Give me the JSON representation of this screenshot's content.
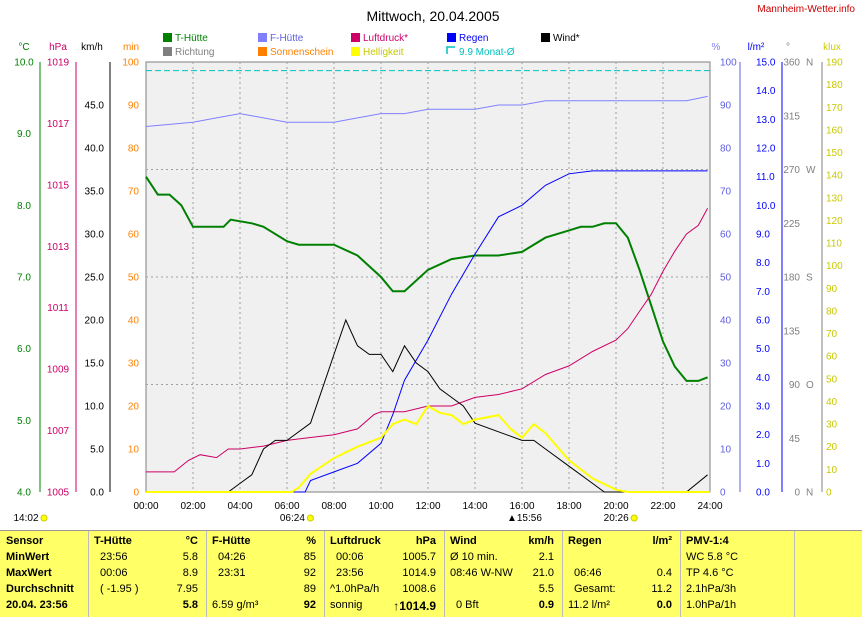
{
  "header": {
    "title": "Mittwoch, 20.04.2005",
    "site": "Mannheim-Wetter.info"
  },
  "units": {
    "temp": "°C",
    "pressure": "hPa",
    "wind": "km/h",
    "sun": "min",
    "humidity": "%",
    "rain": "l/m²",
    "direction": "°",
    "light": "klux"
  },
  "legend": [
    {
      "label": "T-Hütte",
      "color": "#008000",
      "type": "box"
    },
    {
      "label": "F-Hütte",
      "color": "#8080ff",
      "type": "box"
    },
    {
      "label": "Luftdruck*",
      "color": "#cc0066",
      "type": "box"
    },
    {
      "label": "Regen",
      "color": "#0000ff",
      "type": "box"
    },
    {
      "label": "Wind*",
      "color": "#000000",
      "type": "box"
    },
    {
      "label": "Richtung",
      "color": "#808080",
      "type": "box"
    },
    {
      "label": "Sonnenschein",
      "color": "#ff8000",
      "type": "box"
    },
    {
      "label": "Helligkeit",
      "color": "#ffff00",
      "type": "box"
    },
    {
      "label": "9.9 Monat-Ø",
      "color": "#00c0c0",
      "type": "outline"
    }
  ],
  "axes": {
    "temp": [
      "4.0",
      "5.0",
      "6.0",
      "7.0",
      "8.0",
      "9.0",
      "10.0"
    ],
    "pressure": [
      "1005",
      "1007",
      "1009",
      "1011",
      "1013",
      "1015",
      "1017",
      "1019"
    ],
    "wind": [
      "0.0",
      "5.0",
      "10.0",
      "15.0",
      "20.0",
      "25.0",
      "30.0",
      "35.0",
      "40.0",
      "45.0"
    ],
    "sun": [
      "0",
      "10",
      "20",
      "30",
      "40",
      "50",
      "60",
      "70",
      "80",
      "90",
      "100"
    ],
    "humidity": [
      "0",
      "10",
      "20",
      "30",
      "40",
      "50",
      "60",
      "70",
      "80",
      "90",
      "100"
    ],
    "rain": [
      "0.0",
      "1.0",
      "2.0",
      "3.0",
      "4.0",
      "5.0",
      "6.0",
      "7.0",
      "8.0",
      "9.0",
      "10.0",
      "11.0",
      "12.0",
      "13.0",
      "14.0",
      "15.0"
    ],
    "direction": [
      "0",
      "45",
      "90",
      "135",
      "180",
      "225",
      "270",
      "315",
      "360"
    ],
    "compass": [
      "N",
      "",
      "O",
      "",
      "S",
      "",
      "W",
      "",
      "N"
    ],
    "light": [
      "0",
      "10",
      "20",
      "30",
      "40",
      "50",
      "60",
      "70",
      "80",
      "90",
      "100",
      "110",
      "120",
      "130",
      "140",
      "150",
      "160",
      "170",
      "180",
      "190"
    ],
    "time": [
      "00:00",
      "02:00",
      "04:00",
      "06:00",
      "08:00",
      "10:00",
      "12:00",
      "14:00",
      "16:00",
      "18:00",
      "20:00",
      "22:00",
      "24:00"
    ]
  },
  "markers": {
    "sunrise": "06:24",
    "sunset": "20:26",
    "max_light": "15:56",
    "max_temp": "14:02"
  },
  "chart_data": {
    "type": "line",
    "title": "Mittwoch, 20.04.2005",
    "x_range": [
      "00:00",
      "24:00"
    ],
    "series": [
      {
        "name": "T-Hütte",
        "unit": "°C",
        "ylim": [
          4,
          10
        ],
        "x": [
          0,
          0.5,
          1,
          1.5,
          2,
          3.3,
          3.6,
          4.5,
          5,
          6,
          6.5,
          7,
          8,
          9,
          10,
          10.5,
          11,
          12,
          13,
          14,
          15,
          16,
          17,
          18,
          18.5,
          19,
          19.5,
          20,
          20.5,
          21,
          21.5,
          22,
          22.5,
          23,
          23.5,
          23.9
        ],
        "y": [
          8.4,
          8.15,
          8.15,
          8.0,
          7.7,
          7.7,
          7.8,
          7.75,
          7.7,
          7.5,
          7.45,
          7.45,
          7.45,
          7.3,
          7.0,
          6.8,
          6.8,
          7.1,
          7.25,
          7.3,
          7.3,
          7.35,
          7.55,
          7.65,
          7.7,
          7.7,
          7.75,
          7.75,
          7.55,
          7.1,
          6.6,
          6.1,
          5.75,
          5.55,
          5.55,
          5.6
        ]
      },
      {
        "name": "F-Hütte",
        "unit": "%",
        "ylim": [
          0,
          100
        ],
        "x": [
          0,
          2,
          3,
          4,
          5,
          6,
          7,
          8,
          9,
          10,
          11,
          12,
          13,
          14,
          15,
          16,
          17,
          18,
          19,
          20,
          21,
          22,
          23,
          23.9
        ],
        "y": [
          85,
          86,
          87,
          88,
          87,
          86,
          86,
          86,
          87,
          88,
          88,
          89,
          89,
          89,
          90,
          90,
          91,
          91,
          91,
          91,
          91,
          91,
          91,
          92
        ]
      },
      {
        "name": "Luftdruck*",
        "unit": "hPa",
        "ylim": [
          1005,
          1020
        ],
        "x": [
          0,
          1.2,
          1.8,
          2.3,
          3,
          3.5,
          4,
          5,
          6,
          7,
          8,
          9,
          9.7,
          10,
          11,
          12,
          13,
          14,
          15,
          16,
          17,
          18,
          19,
          20,
          20.5,
          21,
          21.5,
          22,
          22.5,
          23,
          23.5,
          23.9
        ],
        "y": [
          1005.7,
          1005.7,
          1006.1,
          1006.3,
          1006.2,
          1006.5,
          1006.5,
          1006.6,
          1006.8,
          1006.9,
          1007.0,
          1007.2,
          1007.7,
          1007.8,
          1007.8,
          1008.0,
          1008.0,
          1008.3,
          1008.4,
          1008.6,
          1009.1,
          1009.4,
          1009.9,
          1010.3,
          1010.7,
          1011.3,
          1011.9,
          1012.7,
          1013.4,
          1014.0,
          1014.3,
          1014.9
        ]
      },
      {
        "name": "Regen",
        "unit": "l/m²",
        "ylim": [
          0,
          15
        ],
        "x": [
          0,
          6.77,
          7,
          8,
          9,
          10,
          10.5,
          11,
          12,
          13,
          14,
          15,
          16,
          17,
          18,
          19,
          20,
          23.9
        ],
        "y": [
          0,
          0,
          0.4,
          0.7,
          1.0,
          1.7,
          2.7,
          3.9,
          5.3,
          6.9,
          8.3,
          9.6,
          10.0,
          10.7,
          11.1,
          11.2,
          11.2,
          11.2
        ]
      },
      {
        "name": "Wind*",
        "unit": "km/h",
        "ylim": [
          0,
          50
        ],
        "x": [
          0,
          3.5,
          4,
          4.5,
          5,
          5.5,
          6,
          7,
          7.5,
          8,
          8.5,
          9,
          9.5,
          10,
          10.5,
          11,
          11.5,
          12,
          12.5,
          13,
          13.5,
          14,
          15,
          16,
          16.5,
          17,
          18,
          19,
          19.5,
          20,
          21,
          22,
          23,
          23.9
        ],
        "y": [
          0,
          0,
          1,
          2,
          5,
          6,
          6,
          8,
          12,
          16,
          20,
          17,
          16,
          16,
          14,
          17,
          15,
          14,
          12,
          11,
          10,
          8,
          7,
          6,
          6,
          5,
          3,
          1,
          0,
          0,
          0,
          0,
          0,
          2
        ]
      },
      {
        "name": "Helligkeit",
        "unit": "klux",
        "ylim": [
          0,
          190
        ],
        "x": [
          0,
          6.2,
          6.5,
          7,
          8,
          9,
          10,
          10.5,
          11,
          11.5,
          12,
          12.5,
          13,
          13.5,
          14,
          15,
          15.5,
          16,
          16.5,
          17,
          18,
          19,
          20,
          20.5,
          24
        ],
        "y": [
          0,
          0,
          2,
          8,
          15,
          20,
          24,
          30,
          32,
          30,
          38,
          35,
          34,
          30,
          32,
          34,
          28,
          24,
          30,
          26,
          14,
          6,
          1,
          0,
          0
        ]
      },
      {
        "name": "Monat-Ø",
        "unit": "%",
        "ylim": [
          0,
          100
        ],
        "x": [
          0,
          24
        ],
        "y": [
          98,
          98
        ]
      }
    ]
  },
  "table": {
    "row_labels": [
      "Sensor",
      "MinWert",
      "MaxWert",
      "Durchschnitt",
      "20.04. 23:56"
    ],
    "t_huette": {
      "header": "T-Hütte",
      "unit": "°C",
      "rows": [
        [
          "23:56",
          "5.8"
        ],
        [
          "00:06",
          "8.9"
        ],
        [
          "( -1.95 )",
          "7.95"
        ],
        [
          "",
          "5.8"
        ]
      ]
    },
    "f_huette": {
      "header": "F-Hütte",
      "unit": "%",
      "rows": [
        [
          "04:26",
          "85"
        ],
        [
          "23:31",
          "92"
        ],
        [
          "",
          "89"
        ],
        [
          "6.59 g/m³",
          "92"
        ]
      ]
    },
    "luftdruck": {
      "header": "Luftdruck",
      "unit": "hPa",
      "rows": [
        [
          "00:06",
          "1005.7"
        ],
        [
          "23:56",
          "1014.9"
        ],
        [
          "^1.0hPa/h",
          "1008.6"
        ],
        [
          "sonnig",
          "↑1014.9"
        ]
      ]
    },
    "wind": {
      "header": "Wind",
      "unit": "km/h",
      "rows": [
        [
          "Ø 10 min.",
          "2.1"
        ],
        [
          "08:46  W-NW",
          "21.0"
        ],
        [
          "",
          "5.5"
        ],
        [
          "0 Bft",
          "0.9"
        ]
      ]
    },
    "regen": {
      "header": "Regen",
      "unit": "l/m²",
      "rows": [
        [
          "",
          ""
        ],
        [
          "06:46",
          "0.4"
        ],
        [
          "Gesamt:",
          "11.2"
        ],
        [
          "11.2 l/m²",
          "0.0"
        ]
      ]
    },
    "pmv": {
      "header": "PMV-1:4",
      "unit": "",
      "rows": [
        "WC 5.8 °C",
        "TP 4.6 °C",
        "2.1hPa/3h",
        "1.0hPa/1h"
      ]
    }
  }
}
